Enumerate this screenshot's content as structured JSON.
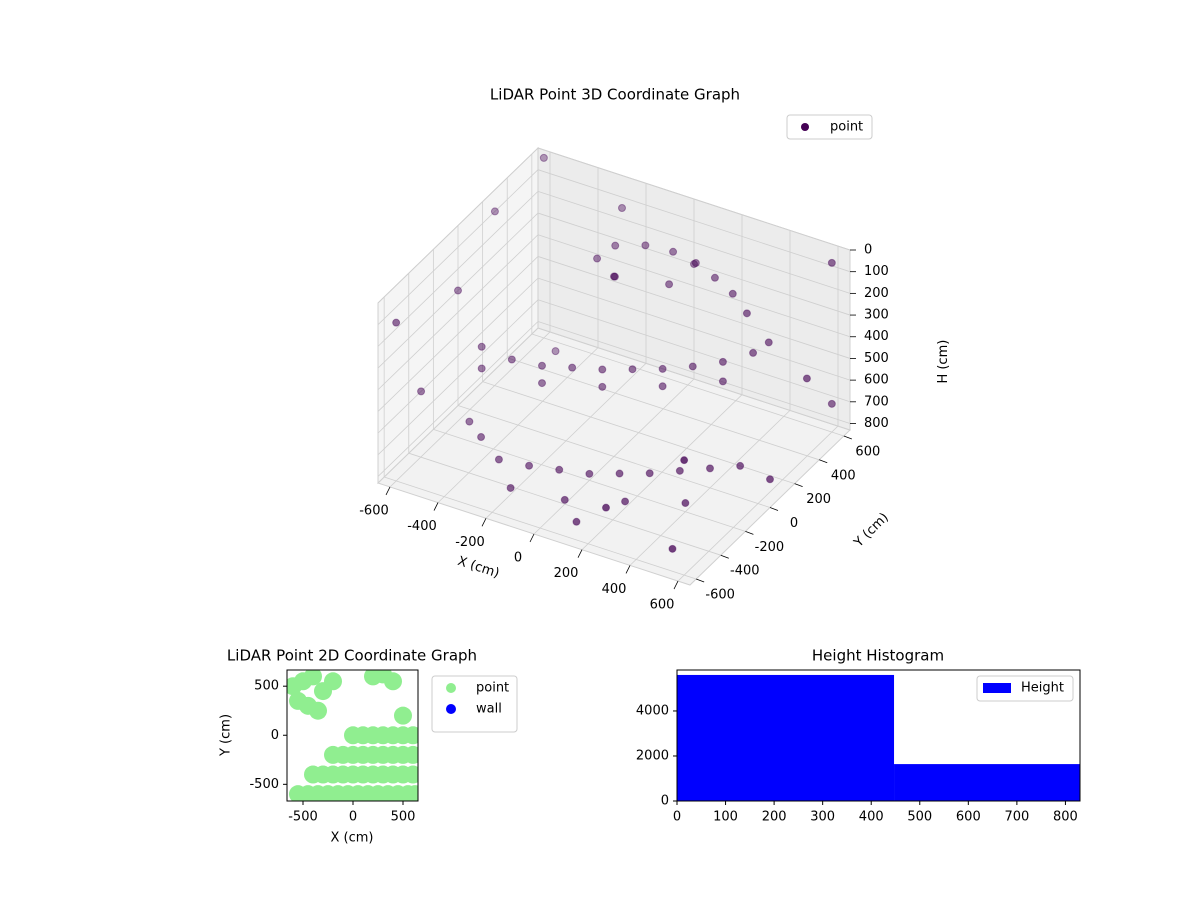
{
  "chart_data": [
    {
      "type": "scatter3d",
      "title": "LiDAR Point 3D Coordinate Graph",
      "xlabel": "X (cm)",
      "ylabel": "Y (cm)",
      "zlabel": "H (cm)",
      "xlim": [
        -650,
        650
      ],
      "ylim": [
        -650,
        650
      ],
      "zlim": [
        830,
        0
      ],
      "xticks": [
        -600,
        -400,
        -200,
        0,
        200,
        400,
        600
      ],
      "yticks": [
        -600,
        -400,
        -200,
        0,
        200,
        400,
        600
      ],
      "zticks": [
        0,
        100,
        200,
        300,
        400,
        500,
        600,
        700,
        800
      ],
      "grid": true,
      "legend": "upper right",
      "series": [
        {
          "name": "point",
          "color": "#440154",
          "x": [
            -200,
            -100,
            0,
            100,
            200,
            300,
            -250,
            400,
            -150,
            50,
            -500,
            -400,
            -300,
            -200,
            -100,
            0,
            100,
            200,
            300,
            400,
            450,
            -500,
            -300,
            -100,
            100,
            300,
            -400,
            -300,
            -200,
            -100,
            0,
            100,
            200,
            300,
            400,
            500,
            -200,
            0,
            200,
            400,
            -500,
            100,
            -600,
            -650,
            -600,
            600,
            600,
            650,
            -650,
            600,
            0,
            -300,
            300,
            650,
            -650,
            500,
            -500,
            0
          ],
          "y": [
            400,
            450,
            480,
            470,
            430,
            380,
            350,
            300,
            300,
            350,
            -100,
            -50,
            0,
            50,
            100,
            150,
            200,
            250,
            300,
            350,
            380,
            -100,
            0,
            100,
            200,
            300,
            -300,
            -350,
            -300,
            -250,
            -200,
            -150,
            -100,
            -50,
            0,
            50,
            -450,
            -400,
            -300,
            -200,
            -200,
            -500,
            600,
            300,
            -600,
            600,
            -600,
            0,
            -300,
            600,
            650,
            650,
            -650,
            300,
            0,
            -500,
            500,
            0
          ],
          "z": [
            150,
            140,
            150,
            160,
            170,
            180,
            200,
            190,
            220,
            210,
            450,
            500,
            520,
            520,
            520,
            510,
            500,
            480,
            450,
            400,
            350,
            550,
            600,
            600,
            580,
            540,
            720,
            760,
            780,
            790,
            800,
            790,
            780,
            760,
            740,
            720,
            800,
            810,
            800,
            790,
            740,
            820,
            0,
            100,
            100,
            50,
            300,
            700,
            600,
            700,
            300,
            150,
            600,
            400,
            300,
            800,
            800,
            0
          ]
        }
      ]
    },
    {
      "type": "scatter",
      "title": "LiDAR Point 2D Coordinate Graph",
      "xlabel": "X (cm)",
      "ylabel": "Y (cm)",
      "xlim": [
        -660,
        650
      ],
      "ylim": [
        -670,
        665
      ],
      "xticks": [
        -500,
        0,
        500
      ],
      "yticks": [
        -500,
        0,
        500
      ],
      "legend": "outside right",
      "series": [
        {
          "name": "point",
          "color": "#90ee90",
          "x": [
            -550,
            -450,
            -350,
            -250,
            -150,
            -50,
            50,
            150,
            250,
            350,
            450,
            550,
            620,
            -400,
            -300,
            -200,
            -100,
            0,
            100,
            200,
            300,
            400,
            500,
            600,
            -200,
            -100,
            0,
            100,
            200,
            300,
            400,
            500,
            600,
            0,
            100,
            200,
            300,
            400,
            500,
            600,
            -600,
            -500,
            -400,
            -300,
            -200,
            -550,
            -450,
            -350,
            200,
            300,
            400,
            500
          ],
          "y": [
            -600,
            -600,
            -600,
            -600,
            -600,
            -600,
            -600,
            -600,
            -600,
            -600,
            -600,
            -600,
            -600,
            -400,
            -400,
            -400,
            -400,
            -400,
            -400,
            -400,
            -400,
            -400,
            -400,
            -400,
            -200,
            -200,
            -200,
            -200,
            -200,
            -200,
            -200,
            -200,
            -200,
            0,
            0,
            0,
            0,
            0,
            0,
            0,
            500,
            550,
            600,
            450,
            550,
            350,
            300,
            250,
            600,
            620,
            550,
            200
          ]
        },
        {
          "name": "wall",
          "color": "#0000ff",
          "x": [],
          "y": []
        }
      ]
    },
    {
      "type": "histogram",
      "title": "Height Histogram",
      "bins": [
        0,
        447,
        830
      ],
      "xlim": [
        0,
        830
      ],
      "ylim": [
        0,
        5820
      ],
      "xticks": [
        0,
        100,
        200,
        300,
        400,
        500,
        600,
        700,
        800
      ],
      "yticks": [
        0,
        2000,
        4000
      ],
      "legend": "upper right",
      "series": [
        {
          "name": "Height",
          "color": "#0000ff",
          "values": [
            5600,
            1640
          ]
        }
      ]
    }
  ]
}
